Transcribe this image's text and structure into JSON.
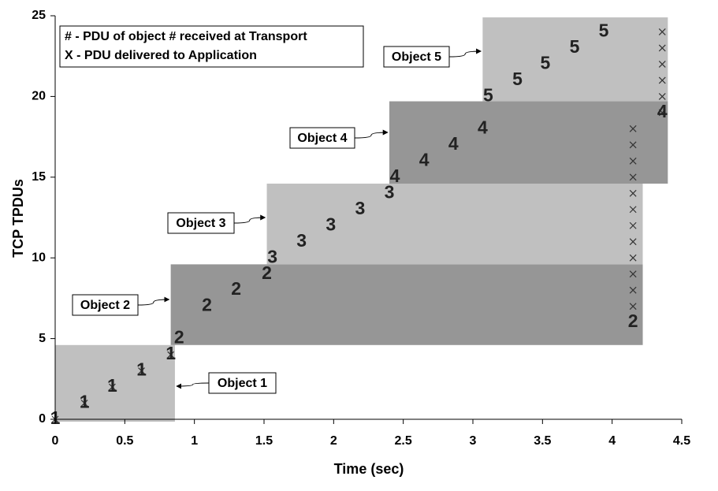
{
  "chart_data": {
    "type": "scatter",
    "xlabel": "Time (sec)",
    "ylabel": "TCP TPDUs",
    "xlim": [
      0,
      4.5
    ],
    "ylim": [
      0,
      25
    ],
    "xticks": [
      0,
      0.5,
      1,
      1.5,
      2,
      2.5,
      3,
      3.5,
      4,
      4.5
    ],
    "yticks": [
      0,
      5,
      10,
      15,
      20,
      25
    ],
    "legend": [
      "# - PDU of object # received at Transport",
      "X - PDU delivered to Application"
    ],
    "series": [
      {
        "name": "Object 1",
        "marker": "1",
        "color": "#c0c0c0",
        "region": {
          "x": [
            0,
            0.86
          ],
          "y": [
            -0.15,
            4.6
          ]
        },
        "x": [
          0,
          0.21,
          0.41,
          0.62,
          0.83
        ],
        "values": [
          0,
          1,
          2,
          3,
          4
        ]
      },
      {
        "name": "Object 2",
        "marker": "2",
        "color": "#969696",
        "region": {
          "x": [
            0.83,
            4.22
          ],
          "y": [
            4.6,
            9.6
          ]
        },
        "x": [
          0.89,
          4.15,
          1.09,
          1.3,
          1.52
        ],
        "values": [
          5,
          6,
          7,
          8,
          9
        ]
      },
      {
        "name": "Object 3",
        "marker": "3",
        "color": "#c0c0c0",
        "region": {
          "x": [
            1.52,
            4.22
          ],
          "y": [
            9.6,
            14.6
          ]
        },
        "x": [
          1.56,
          1.77,
          1.98,
          2.19,
          2.4
        ],
        "values": [
          10,
          11,
          12,
          13,
          14
        ]
      },
      {
        "name": "Object 4",
        "marker": "4",
        "color": "#969696",
        "region": {
          "x": [
            2.4,
            4.4
          ],
          "y": [
            14.6,
            19.7
          ]
        },
        "x": [
          2.44,
          2.65,
          2.86,
          3.07,
          4.36
        ],
        "values": [
          15,
          16,
          17,
          18,
          19
        ]
      },
      {
        "name": "Object 5",
        "marker": "5",
        "color": "#c0c0c0",
        "region": {
          "x": [
            3.07,
            4.4
          ],
          "y": [
            19.7,
            24.9
          ]
        },
        "x": [
          3.11,
          3.32,
          3.52,
          3.73,
          3.94
        ],
        "values": [
          20,
          21,
          22,
          23,
          24
        ]
      }
    ],
    "delivered": {
      "x": [
        0,
        0.21,
        0.41,
        0.62,
        0.83,
        4.15,
        4.15,
        4.15,
        4.15,
        4.15,
        4.15,
        4.15,
        4.15,
        4.15,
        4.15,
        4.15,
        4.15,
        4.36,
        4.36,
        4.36,
        4.36,
        4.36,
        4.36
      ],
      "values": [
        0,
        1,
        2,
        3,
        4,
        7,
        8,
        9,
        10,
        11,
        12,
        13,
        14,
        15,
        16,
        17,
        18,
        19,
        20,
        21,
        22,
        23,
        24
      ]
    }
  }
}
